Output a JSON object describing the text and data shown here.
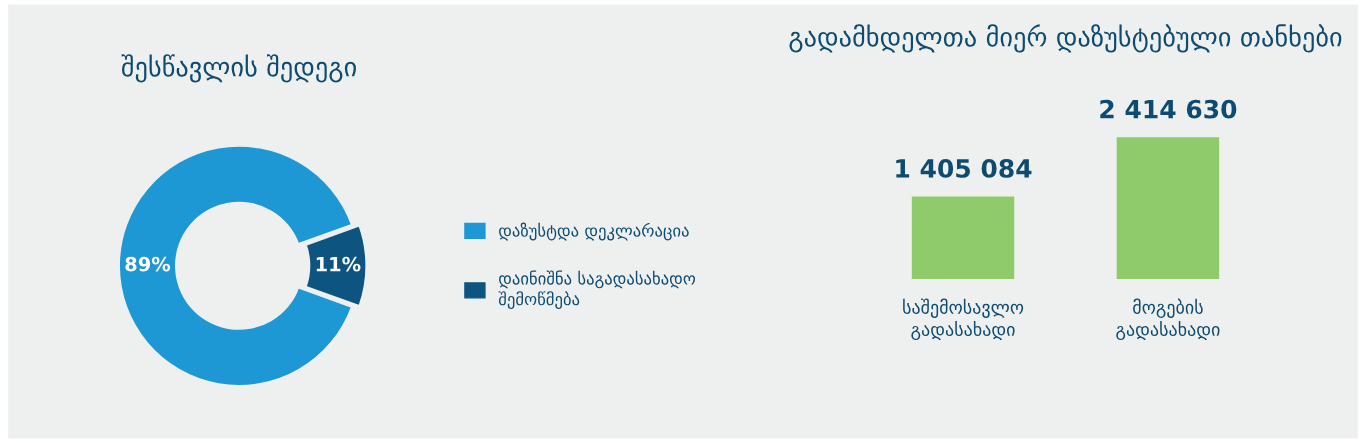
{
  "chart_data": [
    {
      "type": "donut",
      "title": "შესწავლის შედეგი",
      "categories": [
        "დაზუსტდა დეკლარაცია",
        "დაინიშნა საგადასახადო\nშემოწმება"
      ],
      "values": [
        89,
        11
      ],
      "colors": [
        "#1e98d5",
        "#0d5580"
      ],
      "value_labels": [
        "89%",
        "11%"
      ],
      "legend": "right"
    },
    {
      "type": "bar",
      "title": "გადამხდელთა მიერ დაზუსტებული თანხები",
      "categories": [
        "საშემოსავლო\nგადასახადი",
        "მოგების\nგადასახადი"
      ],
      "values": [
        1405084,
        2414630
      ],
      "color": "#8fca6b",
      "value_labels": [
        "1 405 084",
        "2 414 630"
      ]
    }
  ]
}
